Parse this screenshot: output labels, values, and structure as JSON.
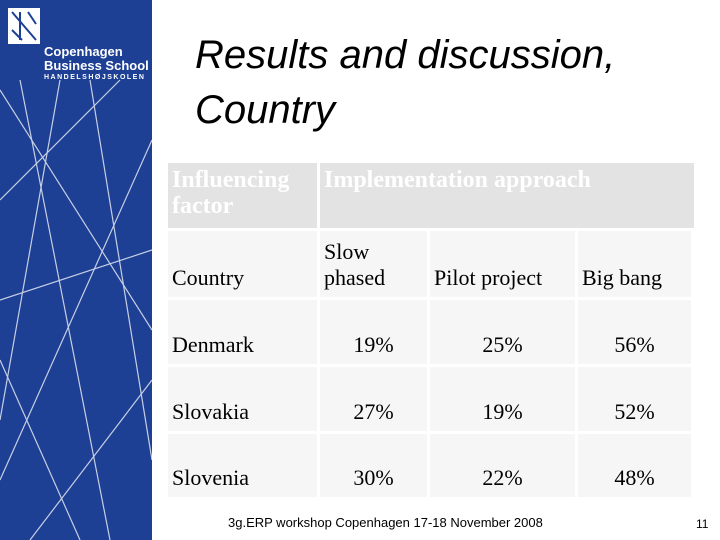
{
  "logo": {
    "line1": "Copenhagen",
    "line2": "Business School",
    "line3": "HANDELSHØJSKOLEN"
  },
  "header": {
    "title": "Results and discussion, Country"
  },
  "table": {
    "group_header": [
      "Influencing factor",
      "Implementation approach"
    ],
    "columns": [
      "Country",
      "Slow phased",
      "Pilot project",
      "Big bang"
    ],
    "rows": [
      [
        "Denmark",
        "19%",
        "25%",
        "56%"
      ],
      [
        "Slovakia",
        "27%",
        "19%",
        "52%"
      ],
      [
        "Slovenia",
        "30%",
        "22%",
        "48%"
      ]
    ]
  },
  "footer": {
    "text": "3g.ERP workshop Copenhagen 17-18 November 2008",
    "page": "11"
  }
}
